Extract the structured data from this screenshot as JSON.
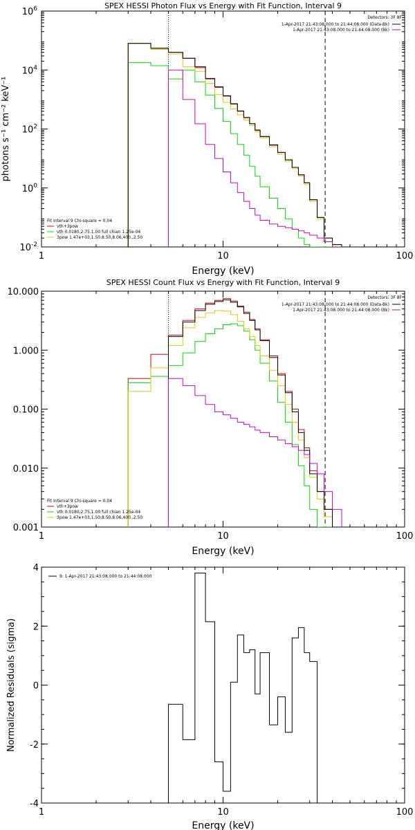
{
  "chart_data": [
    {
      "type": "line",
      "title": "SPEX HESSI Photon Flux vs Energy with Fit Function, Interval 9",
      "xlabel": "Energy (keV)",
      "ylabel": "photons s⁻¹ cm⁻² keV⁻¹",
      "xscale": "log",
      "yscale": "log",
      "xlim": [
        1,
        100
      ],
      "ylim": [
        0.01,
        1000000
      ],
      "x_ticks": [
        {
          "v": 1,
          "label": "1"
        },
        {
          "v": 10,
          "label": "10"
        },
        {
          "v": 100,
          "label": "100"
        }
      ],
      "y_ticks": [
        {
          "v": 0.01,
          "base": "10",
          "exp": "-2"
        },
        {
          "v": 1,
          "base": "10",
          "exp": "0"
        },
        {
          "v": 100,
          "base": "10",
          "exp": "2"
        },
        {
          "v": 10000,
          "base": "10",
          "exp": "4"
        },
        {
          "v": 1000000,
          "base": "10",
          "exp": "6"
        }
      ],
      "vlines": [
        {
          "x": 5.0,
          "style": "dotted"
        },
        {
          "x": 36.5,
          "style": "dashed"
        }
      ],
      "legend_top_right": {
        "header": "Detectors: 3F 8F",
        "lines": [
          {
            "text": "1-Apr-2017 21:43:08.000 to 21:44:08.000 (Data-Bk)",
            "color": "#000000"
          },
          {
            "text": "1-Apr-2017 21:43:08.000 to 21:44:08.000 (Bk)",
            "color": "#cc00cc"
          }
        ]
      },
      "legend_bottom_left": {
        "header": "Fit Interval 9   Chi-square = 0.04",
        "lines": [
          {
            "text": "vth+3pow",
            "color": "#dd0000"
          },
          {
            "text": "vth 0.0180,2.75,1.00  full chian 1.25e-04",
            "color": "#00dd00"
          },
          {
            "text": "3pow 1.47e+03,1.50,8.50,8.06,400.,2.50",
            "color": "#ddcc00"
          }
        ]
      },
      "edges": [
        3.0,
        4.0,
        5.0,
        6.0,
        7.0,
        8.0,
        9.0,
        10.0,
        11.0,
        12.0,
        13.0,
        14.0,
        15.0,
        16.0,
        18.0,
        20.0,
        22.0,
        24.0,
        26.0,
        28.0,
        30.0,
        33.0,
        36.0,
        40.0,
        45.0
      ],
      "series": [
        {
          "name": "vth+3pow",
          "color": "#dd0000",
          "values": [
            80000,
            55000,
            40000,
            25000,
            12000,
            5000,
            2600,
            1300,
            700,
            400,
            240,
            150,
            90,
            55,
            28,
            16,
            9,
            5,
            2.8,
            1.5,
            0.4,
            0.1,
            0.02,
            0.012
          ]
        },
        {
          "name": "vth",
          "color": "#00dd00",
          "values": [
            18000,
            14000,
            5000,
            10000,
            4000,
            1400,
            500,
            180,
            70,
            30,
            13,
            5.5,
            2.5,
            1.1,
            0.45,
            0.2,
            0.09,
            0.04,
            0.02,
            0.012,
            0.01,
            0.01,
            0.01,
            0.01
          ]
        },
        {
          "name": "3pow",
          "color": "#ddcc00",
          "values": [
            80000,
            50000,
            35000,
            13000,
            9000,
            3500,
            1500,
            800,
            480,
            300,
            200,
            130,
            80,
            50,
            25,
            14,
            8,
            4.5,
            2.5,
            1.3,
            0.35,
            0.09,
            0.02,
            0.012
          ]
        },
        {
          "name": "Data-Bk",
          "color": "#000000",
          "values": [
            80000,
            55000,
            40000,
            25000,
            13000,
            5200,
            2700,
            1350,
            720,
            410,
            245,
            152,
            92,
            56,
            29,
            16,
            9,
            5,
            2.8,
            1.5,
            0.4,
            0.1,
            0.02,
            0.012
          ]
        },
        {
          "name": "Bk",
          "color": "#cc00cc",
          "values": [
            null,
            null,
            10000,
            1000,
            150,
            30,
            10,
            3.5,
            1.5,
            0.7,
            0.35,
            0.2,
            0.12,
            0.08,
            0.06,
            0.05,
            0.045,
            0.04,
            0.035,
            0.03,
            0.025,
            0.02,
            0.015,
            0.01
          ]
        }
      ]
    },
    {
      "type": "line",
      "title": "SPEX HESSI Count Flux vs Energy with Fit Function, Interval 9",
      "xlabel": "Energy (keV)",
      "ylabel": "",
      "xscale": "log",
      "yscale": "log",
      "xlim": [
        1,
        100
      ],
      "ylim": [
        0.001,
        10
      ],
      "x_ticks": [
        {
          "v": 1,
          "label": "1"
        },
        {
          "v": 10,
          "label": "10"
        },
        {
          "v": 100,
          "label": "100"
        }
      ],
      "y_ticks": [
        {
          "v": 0.001,
          "label": "0.001"
        },
        {
          "v": 0.01,
          "label": "0.010"
        },
        {
          "v": 0.1,
          "label": "0.100"
        },
        {
          "v": 1,
          "label": "1.000"
        },
        {
          "v": 10,
          "label": "10.000"
        }
      ],
      "vlines": [
        {
          "x": 5.0,
          "style": "dotted"
        },
        {
          "x": 36.5,
          "style": "dashed"
        }
      ],
      "legend_top_right": {
        "header": "Detectors: 3F 8F",
        "lines": [
          {
            "text": "1-Apr-2017 21:43:08.000 to 21:44:08.000 (Data-Bk)",
            "color": "#000000"
          },
          {
            "text": "1-Apr-2017 21:43:08.000 to 21:44:08.000 (Bk)",
            "color": "#cc00cc"
          }
        ]
      },
      "legend_bottom_left": {
        "header": "Fit Interval 9   Chi-square = 0.04",
        "lines": [
          {
            "text": "vth+3pow",
            "color": "#dd0000"
          },
          {
            "text": "vth 0.0180,2.75,1.00  full chian 1.25e-04",
            "color": "#00dd00"
          },
          {
            "text": "3pow 1.47e+03,1.50,8.50,8.06,400.,2.50",
            "color": "#ddcc00"
          }
        ]
      },
      "edges": [
        3.0,
        4.0,
        5.0,
        6.0,
        7.0,
        8.0,
        9.0,
        10.0,
        11.0,
        12.0,
        13.0,
        14.0,
        15.0,
        16.0,
        18.0,
        20.0,
        22.0,
        24.0,
        26.0,
        28.0,
        30.0,
        33.0,
        36.0,
        40.0,
        45.0
      ],
      "series": [
        {
          "name": "vth+3pow",
          "color": "#dd0000",
          "values": [
            0.33,
            0.85,
            1.8,
            3.2,
            5.0,
            6.3,
            7.0,
            7.5,
            6.8,
            5.6,
            4.4,
            3.3,
            2.3,
            1.5,
            0.8,
            0.4,
            0.2,
            0.1,
            0.045,
            0.022,
            0.009,
            0.004,
            0.002,
            0.001
          ]
        },
        {
          "name": "vth",
          "color": "#00dd00",
          "values": [
            0.28,
            0.36,
            0.55,
            0.9,
            1.4,
            1.9,
            2.3,
            2.7,
            2.8,
            2.6,
            2.1,
            1.5,
            1.0,
            0.6,
            0.3,
            0.13,
            0.06,
            0.025,
            0.011,
            0.005,
            0.002,
            0.001,
            0.001,
            0.001
          ]
        },
        {
          "name": "3pow",
          "color": "#ddcc00",
          "values": [
            0.2,
            0.5,
            1.2,
            2.4,
            3.6,
            4.3,
            4.7,
            4.6,
            4.0,
            3.1,
            2.3,
            1.7,
            1.2,
            0.8,
            0.45,
            0.25,
            0.12,
            0.06,
            0.03,
            0.015,
            0.007,
            0.003,
            0.0015,
            0.001
          ]
        },
        {
          "name": "Data-Bk",
          "color": "#000000",
          "values": [
            null,
            null,
            1.7,
            3.0,
            4.7,
            6.0,
            6.7,
            7.1,
            6.5,
            5.4,
            4.2,
            3.2,
            2.2,
            1.45,
            0.75,
            0.38,
            0.19,
            0.09,
            0.04,
            0.02,
            0.008,
            0.004,
            0.002,
            0.001
          ]
        },
        {
          "name": "Bk",
          "color": "#cc00cc",
          "values": [
            null,
            null,
            0.33,
            0.25,
            0.17,
            0.12,
            0.09,
            0.08,
            0.07,
            0.06,
            0.055,
            0.05,
            0.044,
            0.04,
            0.034,
            0.03,
            0.026,
            0.023,
            0.02,
            0.017,
            0.012,
            0.008,
            0.004,
            0.002
          ]
        }
      ]
    },
    {
      "type": "line",
      "title": "",
      "xlabel": "Energy (keV)",
      "ylabel": "Normalized Residuals (sigma)",
      "xscale": "log",
      "yscale": "linear",
      "xlim": [
        1,
        100
      ],
      "ylim": [
        -4,
        4
      ],
      "x_ticks": [
        {
          "v": 1,
          "label": "1"
        },
        {
          "v": 10,
          "label": "10"
        },
        {
          "v": 100,
          "label": "100"
        }
      ],
      "y_ticks": [
        {
          "v": -4,
          "label": "-4"
        },
        {
          "v": -2,
          "label": "-2"
        },
        {
          "v": 0,
          "label": "0"
        },
        {
          "v": 2,
          "label": "2"
        },
        {
          "v": 4,
          "label": "4"
        }
      ],
      "legend": {
        "text": "9:  1-Apr-2017 21:43:08.000 to 21:44:08.000",
        "color": "#000000"
      },
      "edges": [
        5.0,
        6.0,
        7.0,
        8.0,
        9.0,
        10.0,
        11.0,
        12.0,
        13.0,
        14.0,
        15.0,
        16.0,
        18.0,
        20.0,
        22.0,
        24.0,
        26.0,
        28.0,
        30.0,
        33.0,
        36.0
      ],
      "series": [
        {
          "name": "9:  1-Apr-2017 21:43:08.000 to 21:44:08.000",
          "color": "#000000",
          "values": [
            -0.65,
            -1.85,
            3.8,
            2.15,
            -2.6,
            -3.6,
            0.1,
            1.7,
            1.1,
            1.2,
            -0.3,
            1.1,
            -1.35,
            -0.4,
            -1.6,
            1.6,
            1.95,
            1.1,
            0.8,
            null
          ]
        }
      ]
    }
  ]
}
